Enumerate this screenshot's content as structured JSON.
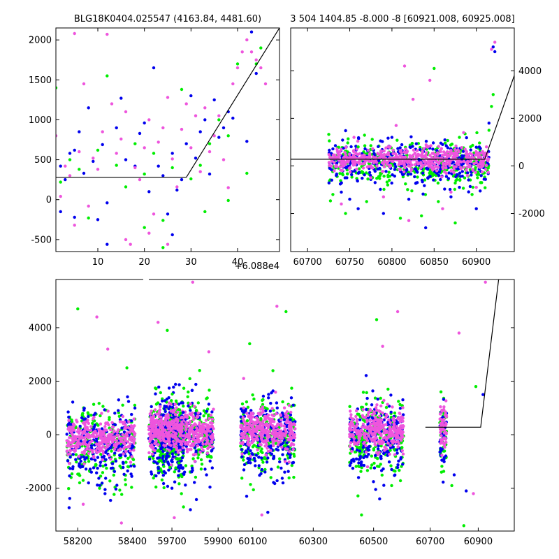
{
  "colors": {
    "blue": "#0000ee",
    "green": "#00ee00",
    "magenta": "#ee55dd",
    "line": "#000000",
    "background": "#ffffff"
  },
  "chart_data": [
    {
      "id": "top_left",
      "type": "scatter",
      "title": "BLG18K0404.025547 (4163.84, 4481.60)",
      "x_offset_label": "+6.088e4",
      "xlim": [
        1,
        49
      ],
      "ylim": [
        -650,
        2150
      ],
      "xticks": [
        "10",
        "20",
        "30",
        "40"
      ],
      "yticks": [
        "-500",
        "0",
        "500",
        "1000",
        "1500",
        "2000"
      ],
      "y_axis_side": "left",
      "model_line": [
        [
          1,
          280
        ],
        [
          29,
          280
        ],
        [
          49,
          2150
        ]
      ],
      "series": [
        {
          "color": "blue",
          "points": [
            [
              2,
              420
            ],
            [
              3,
              250
            ],
            [
              4,
              580
            ],
            [
              5,
              620
            ],
            [
              6,
              850
            ],
            [
              7,
              330
            ],
            [
              8,
              1150
            ],
            [
              9,
              480
            ],
            [
              10,
              -250
            ],
            [
              11,
              690
            ],
            [
              12,
              -40
            ],
            [
              14,
              900
            ],
            [
              15,
              1270
            ],
            [
              16,
              500
            ],
            [
              18,
              420
            ],
            [
              19,
              830
            ],
            [
              20,
              960
            ],
            [
              21,
              100
            ],
            [
              22,
              1650
            ],
            [
              23,
              420
            ],
            [
              24,
              300
            ],
            [
              25,
              -180
            ],
            [
              26,
              580
            ],
            [
              27,
              120
            ],
            [
              28,
              250
            ],
            [
              29,
              700
            ],
            [
              30,
              1300
            ],
            [
              31,
              520
            ],
            [
              32,
              850
            ],
            [
              33,
              1000
            ],
            [
              34,
              320
            ],
            [
              35,
              1250
            ],
            [
              36,
              780
            ],
            [
              37,
              900
            ],
            [
              38,
              1100
            ],
            [
              39,
              1020
            ],
            [
              42,
              730
            ],
            [
              43,
              2100
            ],
            [
              44,
              1580
            ],
            [
              2,
              -150
            ],
            [
              5,
              -220
            ],
            [
              12,
              -560
            ],
            [
              26,
              -440
            ]
          ]
        },
        {
          "color": "green",
          "points": [
            [
              1,
              1400
            ],
            [
              2,
              220
            ],
            [
              4,
              500
            ],
            [
              6,
              380
            ],
            [
              8,
              -230
            ],
            [
              10,
              620
            ],
            [
              12,
              1550
            ],
            [
              14,
              430
            ],
            [
              16,
              160
            ],
            [
              18,
              700
            ],
            [
              20,
              320
            ],
            [
              22,
              580
            ],
            [
              24,
              -260
            ],
            [
              26,
              400
            ],
            [
              28,
              1380
            ],
            [
              30,
              260
            ],
            [
              32,
              430
            ],
            [
              34,
              700
            ],
            [
              36,
              1000
            ],
            [
              38,
              800
            ],
            [
              40,
              1700
            ],
            [
              42,
              330
            ],
            [
              44,
              1700
            ],
            [
              45,
              1900
            ],
            [
              20,
              -350
            ],
            [
              24,
              -600
            ],
            [
              33,
              -150
            ],
            [
              38,
              -10
            ]
          ]
        },
        {
          "color": "magenta",
          "points": [
            [
              1,
              800
            ],
            [
              2,
              40
            ],
            [
              3,
              420
            ],
            [
              4,
              300
            ],
            [
              5,
              2080
            ],
            [
              6,
              600
            ],
            [
              7,
              1450
            ],
            [
              8,
              -80
            ],
            [
              9,
              520
            ],
            [
              10,
              380
            ],
            [
              11,
              850
            ],
            [
              12,
              2070
            ],
            [
              13,
              1200
            ],
            [
              14,
              580
            ],
            [
              15,
              760
            ],
            [
              16,
              1100
            ],
            [
              17,
              -560
            ],
            [
              18,
              400
            ],
            [
              19,
              250
            ],
            [
              20,
              650
            ],
            [
              21,
              1000
            ],
            [
              22,
              -180
            ],
            [
              23,
              720
            ],
            [
              24,
              900
            ],
            [
              25,
              1280
            ],
            [
              26,
              510
            ],
            [
              27,
              160
            ],
            [
              28,
              880
            ],
            [
              29,
              1200
            ],
            [
              30,
              650
            ],
            [
              31,
              1050
            ],
            [
              32,
              350
            ],
            [
              33,
              1150
            ],
            [
              34,
              600
            ],
            [
              35,
              800
            ],
            [
              36,
              1050
            ],
            [
              37,
              500
            ],
            [
              38,
              150
            ],
            [
              39,
              1450
            ],
            [
              40,
              1650
            ],
            [
              41,
              1850
            ],
            [
              42,
              2000
            ],
            [
              43,
              1850
            ],
            [
              44,
              1750
            ],
            [
              45,
              1650
            ],
            [
              46,
              1450
            ],
            [
              5,
              -320
            ],
            [
              16,
              -500
            ],
            [
              21,
              -420
            ],
            [
              25,
              -560
            ]
          ]
        }
      ]
    },
    {
      "id": "top_right",
      "type": "scatter",
      "title": "3 504 1404.85 -8.000 -8 [60921.008, 60925.008]",
      "xlim": [
        60680,
        60945
      ],
      "ylim": [
        -3600,
        5800
      ],
      "xticks": [
        "60700",
        "60750",
        "60800",
        "60850",
        "60900"
      ],
      "yticks": [
        "-2000",
        "0",
        "2000",
        "4000"
      ],
      "y_axis_side": "right",
      "model_line": [
        [
          60680,
          280
        ],
        [
          60910,
          280
        ],
        [
          60945,
          3800
        ]
      ],
      "band": {
        "x_start": 60725,
        "x_end": 60915,
        "y_center": 250,
        "y_spread": 250
      },
      "series": [
        {
          "color": "blue",
          "points": [
            [
              60740,
              -1100
            ],
            [
              60760,
              -1800
            ],
            [
              60780,
              -700
            ],
            [
              60800,
              1200
            ],
            [
              60820,
              -1400
            ],
            [
              60840,
              -2600
            ],
            [
              60860,
              900
            ],
            [
              60880,
              -900
            ],
            [
              60900,
              -1800
            ],
            [
              60915,
              1800
            ],
            [
              60920,
              5000
            ],
            [
              60922,
              4800
            ],
            [
              60750,
              -1400
            ],
            [
              60790,
              -2000
            ],
            [
              60830,
              -700
            ],
            [
              60870,
              -1300
            ]
          ]
        },
        {
          "color": "green",
          "points": [
            [
              60730,
              -1200
            ],
            [
              60745,
              -2000
            ],
            [
              60770,
              -1500
            ],
            [
              60795,
              -800
            ],
            [
              60810,
              -2200
            ],
            [
              60835,
              -2100
            ],
            [
              60855,
              -1500
            ],
            [
              60875,
              -2400
            ],
            [
              60895,
              -1200
            ],
            [
              60905,
              -700
            ],
            [
              60915,
              1500
            ],
            [
              60918,
              2500
            ],
            [
              60760,
              800
            ],
            [
              60880,
              1200
            ],
            [
              60850,
              4100
            ],
            [
              60920,
              3000
            ]
          ]
        },
        {
          "color": "magenta",
          "points": [
            [
              60735,
              700
            ],
            [
              60755,
              1200
            ],
            [
              60775,
              -500
            ],
            [
              60790,
              -1300
            ],
            [
              60805,
              1700
            ],
            [
              60815,
              4200
            ],
            [
              60825,
              2800
            ],
            [
              60845,
              3600
            ],
            [
              60860,
              -1800
            ],
            [
              60885,
              1400
            ],
            [
              60900,
              -900
            ],
            [
              60912,
              800
            ],
            [
              60918,
              4900
            ],
            [
              60922,
              5200
            ],
            [
              60740,
              -1600
            ],
            [
              60820,
              -2300
            ],
            [
              60870,
              -1100
            ]
          ]
        }
      ]
    },
    {
      "id": "bottom",
      "type": "scatter",
      "xlim": [
        58120,
        61050
      ],
      "ylim": [
        -3600,
        5800
      ],
      "xticks": [
        "58200",
        "58400",
        "59700",
        "59900",
        "60100",
        "60300",
        "60500",
        "60700",
        "60900"
      ],
      "yticks": [
        "-2000",
        "0",
        "2000",
        "4000"
      ],
      "y_axis_side": "left",
      "model_line": [
        [
          60680,
          280
        ],
        [
          60910,
          280
        ],
        [
          60985,
          5800
        ]
      ],
      "seasons": [
        {
          "x_start": 58160,
          "x_end": 58410,
          "y_center": -150
        },
        {
          "x_start": 58560,
          "x_end": 58790,
          "y_center": 150
        },
        {
          "x_start": 58880,
          "x_end": 59110,
          "y_center": 150
        },
        {
          "x_start": 59220,
          "x_end": 59460,
          "y_center": 150
        },
        {
          "x_start": 59570,
          "x_end": 59750,
          "y_center": 200
        }
      ],
      "series": [
        {
          "color": "blue",
          "points": [
            [
              58250,
              -1400
            ],
            [
              58300,
              -2200
            ],
            [
              58350,
              1300
            ],
            [
              59700,
              -2000
            ],
            [
              59780,
              -2800
            ],
            [
              59850,
              -1500
            ],
            [
              60080,
              -2300
            ],
            [
              60150,
              -2900
            ],
            [
              60200,
              -1800
            ],
            [
              60450,
              -1600
            ],
            [
              60520,
              -2400
            ],
            [
              60560,
              -1300
            ],
            [
              60800,
              -1500
            ],
            [
              60850,
              -2100
            ],
            [
              60920,
              1500
            ]
          ]
        },
        {
          "color": "green",
          "points": [
            [
              58200,
              4700
            ],
            [
              58280,
              -2000
            ],
            [
              58380,
              2500
            ],
            [
              59680,
              3900
            ],
            [
              59750,
              -2700
            ],
            [
              59820,
              2400
            ],
            [
              60090,
              3400
            ],
            [
              60160,
              -1600
            ],
            [
              60210,
              4600
            ],
            [
              60460,
              -3000
            ],
            [
              60510,
              4300
            ],
            [
              60560,
              -1900
            ],
            [
              60790,
              -1900
            ],
            [
              60840,
              -3400
            ],
            [
              60890,
              1800
            ]
          ]
        },
        {
          "color": "magenta",
          "points": [
            [
              58220,
              -2600
            ],
            [
              58270,
              4400
            ],
            [
              58310,
              3200
            ],
            [
              58360,
              -3300
            ],
            [
              59640,
              4200
            ],
            [
              59710,
              -3100
            ],
            [
              59790,
              5700
            ],
            [
              59860,
              3100
            ],
            [
              60070,
              2100
            ],
            [
              60130,
              -3000
            ],
            [
              60180,
              4800
            ],
            [
              60480,
              -1200
            ],
            [
              60530,
              3300
            ],
            [
              60580,
              4600
            ],
            [
              60820,
              3800
            ],
            [
              60880,
              -2200
            ],
            [
              60930,
              5700
            ]
          ]
        }
      ]
    }
  ]
}
